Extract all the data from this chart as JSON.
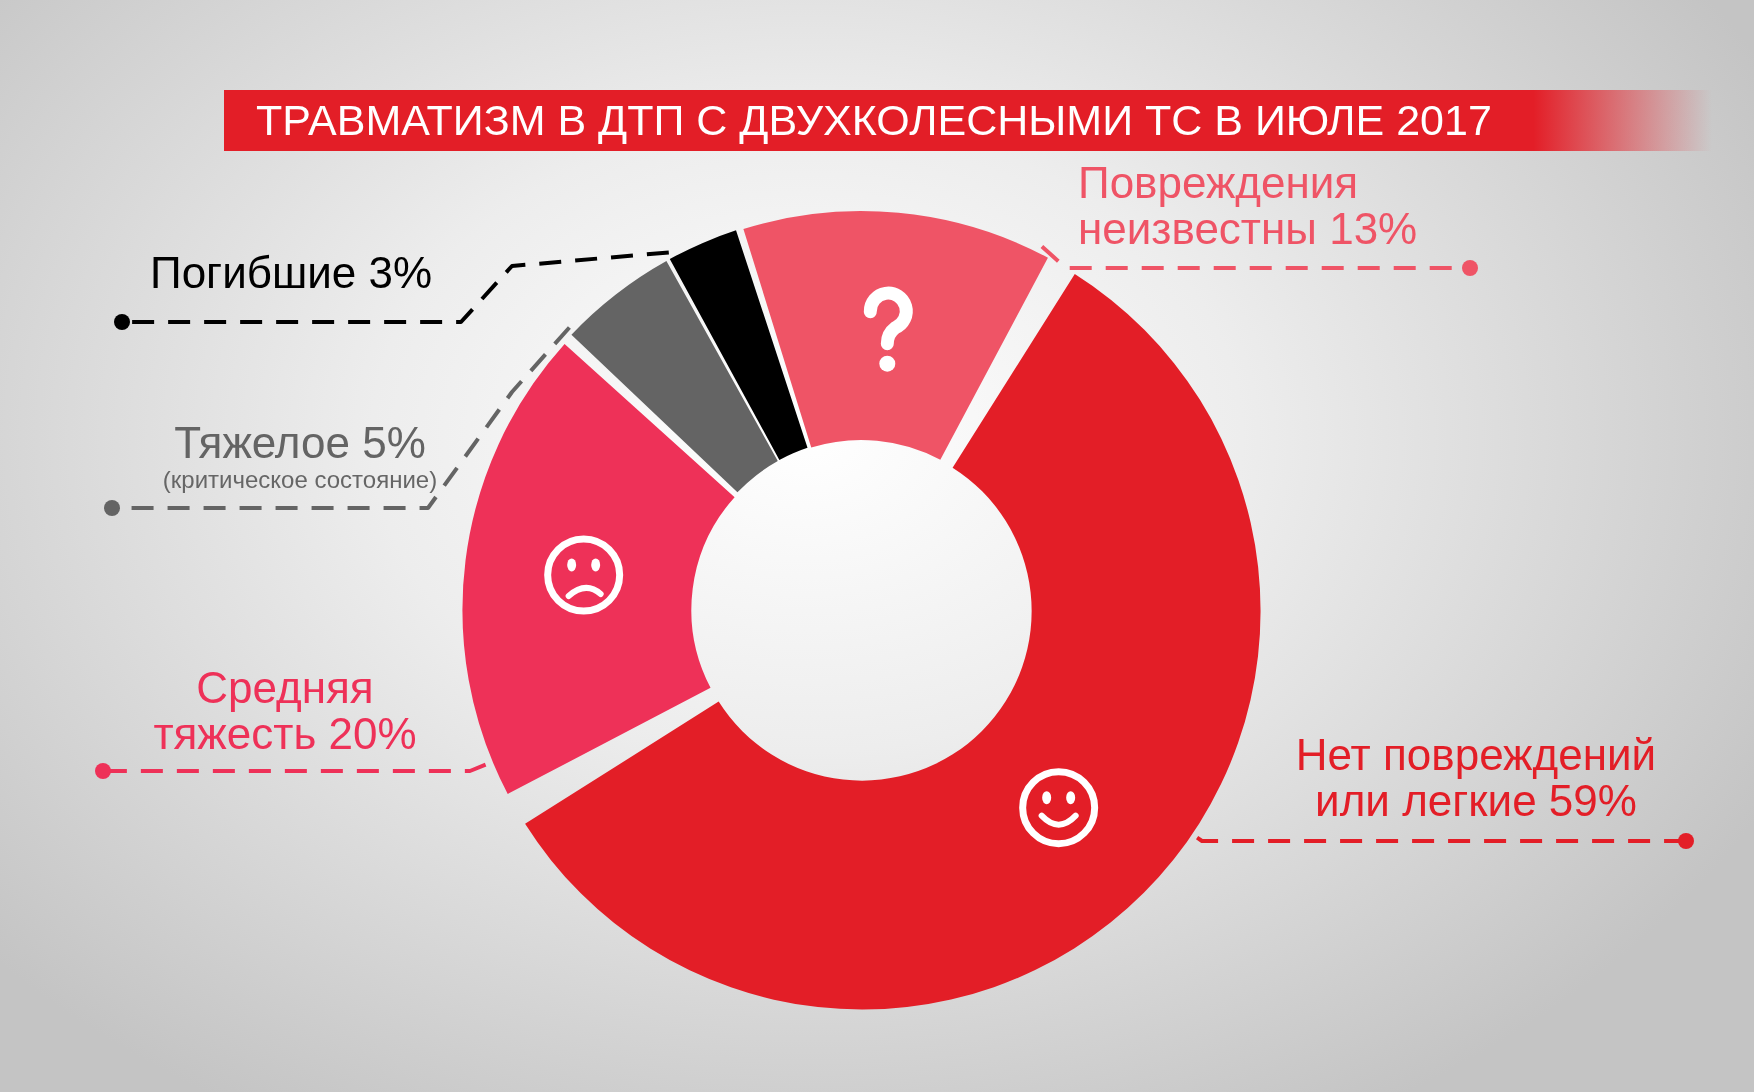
{
  "chart_data": {
    "type": "donut",
    "title": "ТРАВМАТИЗМ В ДТП С ДВУХКОЛЕСНЫМИ ТС В ИЮЛЕ 2017",
    "categories": [
      "Повреждения неизвестны",
      "Нет повреждений или легкие",
      "Средняя тяжесть",
      "Тяжелое",
      "Погибшие"
    ],
    "values": [
      13,
      59,
      20,
      5,
      3
    ],
    "value_labels": [
      "13%",
      "59%",
      "20%",
      "5%",
      "3%"
    ],
    "colors": [
      "#ef5466",
      "#e31e27",
      "#ee3158",
      "#646464",
      "#000000"
    ],
    "annotations": [
      "(критическое состояние)"
    ]
  }
}
